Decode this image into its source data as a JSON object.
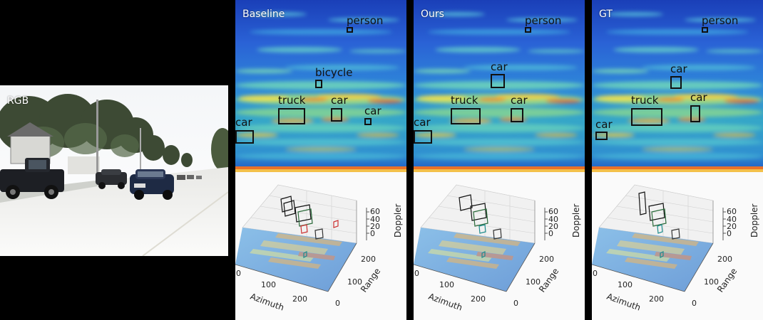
{
  "rgb_panel": {
    "title": "RGB"
  },
  "panels": [
    {
      "id": "baseline",
      "title": "Baseline",
      "boxes": [
        {
          "label": "person"
        },
        {
          "label": "bicycle"
        },
        {
          "label": "truck"
        },
        {
          "label": "car"
        },
        {
          "label": "car"
        },
        {
          "label": "car"
        }
      ]
    },
    {
      "id": "ours",
      "title": "Ours",
      "boxes": [
        {
          "label": "person"
        },
        {
          "label": "car"
        },
        {
          "label": "truck"
        },
        {
          "label": "car"
        },
        {
          "label": "car"
        }
      ]
    },
    {
      "id": "gt",
      "title": "GT",
      "boxes": [
        {
          "label": "person"
        },
        {
          "label": "car"
        },
        {
          "label": "truck"
        },
        {
          "label": "car"
        },
        {
          "label": "car"
        }
      ]
    }
  ],
  "plot3d": {
    "azimuth_label": "Azimuth",
    "range_label": "Range",
    "doppler_label": "Doppler",
    "azimuth_ticks": [
      "0",
      "100",
      "200"
    ],
    "range_ticks": [
      "0",
      "100",
      "200"
    ],
    "doppler_ticks": [
      "0",
      "20",
      "40",
      "60"
    ]
  }
}
